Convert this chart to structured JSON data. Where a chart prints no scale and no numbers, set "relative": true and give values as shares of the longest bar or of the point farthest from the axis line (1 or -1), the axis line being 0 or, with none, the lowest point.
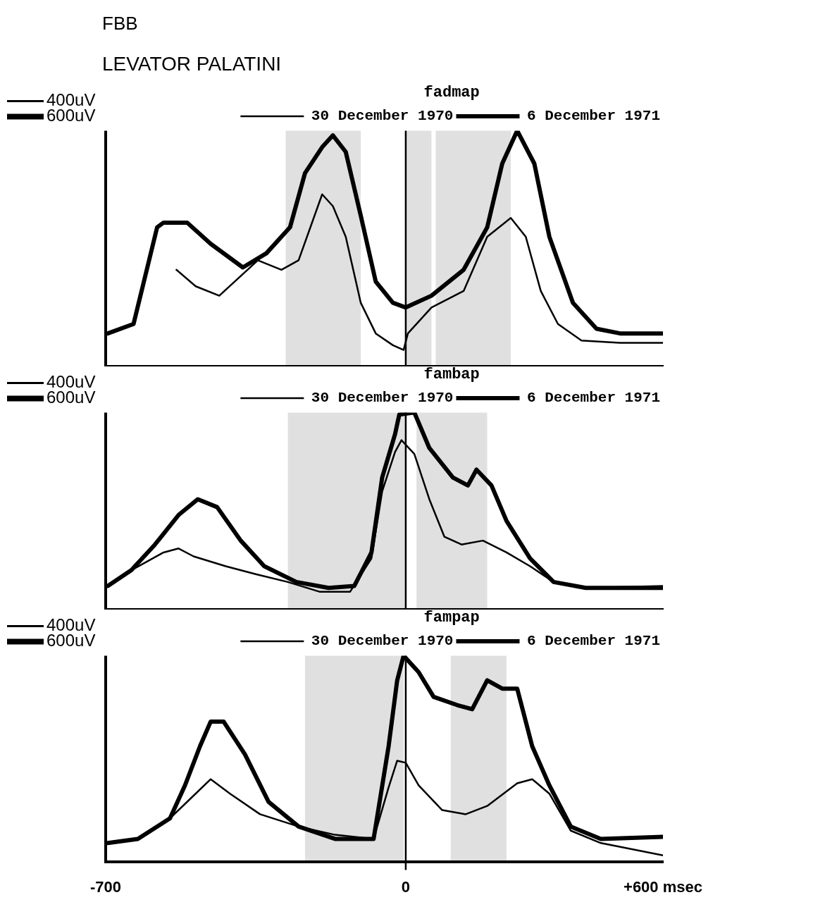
{
  "chart_data": [
    {
      "type": "line",
      "title": "LEVATOR PALATINI",
      "subtitle": "FBB",
      "legend_title": "fadmap",
      "legend": "top right",
      "relative": true,
      "xlim": [
        -700,
        600
      ],
      "tick_labels": false,
      "annotations": [
        "400uV",
        "600uV"
      ],
      "series": [
        {
          "name": "30 December 1970",
          "color": "#000000",
          "x": [
            -535,
            -490,
            -435,
            -345,
            -290,
            -250,
            -195,
            -170,
            -140,
            -105,
            -70,
            -30,
            -5,
            5,
            60,
            135,
            190,
            245,
            280,
            315,
            355,
            410,
            500,
            600
          ],
          "values": [
            0.41,
            0.34,
            0.3,
            0.45,
            0.41,
            0.45,
            0.73,
            0.68,
            0.55,
            0.27,
            0.14,
            0.09,
            0.07,
            0.14,
            0.25,
            0.32,
            0.55,
            0.63,
            0.55,
            0.32,
            0.18,
            0.11,
            0.1,
            0.1
          ]
        },
        {
          "name": "6 December 1971",
          "color": "#000000",
          "x": [
            -695,
            -635,
            -580,
            -565,
            -510,
            -455,
            -380,
            -325,
            -270,
            -235,
            -195,
            -170,
            -140,
            -105,
            -70,
            -30,
            0,
            60,
            135,
            190,
            225,
            260,
            300,
            335,
            390,
            445,
            500,
            600
          ],
          "values": [
            0.14,
            0.18,
            0.59,
            0.61,
            0.61,
            0.52,
            0.42,
            0.48,
            0.59,
            0.82,
            0.93,
            0.98,
            0.91,
            0.64,
            0.36,
            0.27,
            0.25,
            0.3,
            0.41,
            0.59,
            0.86,
            1.0,
            0.86,
            0.55,
            0.27,
            0.16,
            0.14,
            0.14
          ]
        }
      ],
      "ref_lines": [
        {
          "axis": "x",
          "value": 0,
          "color": "#000000"
        }
      ],
      "bands": [
        {
          "axis": "x",
          "from": -280,
          "to": -105,
          "color": "#000000"
        },
        {
          "axis": "x",
          "from": 0,
          "to": 60,
          "color": "#000000"
        },
        {
          "axis": "x",
          "from": 70,
          "to": 245,
          "color": "#000000"
        }
      ]
    },
    {
      "type": "line",
      "legend_title": "fambap",
      "legend": "top right",
      "relative": true,
      "xlim": [
        -700,
        600
      ],
      "tick_labels": false,
      "annotations": [
        "400uV",
        "600uV"
      ],
      "series": [
        {
          "name": "30 December 1970",
          "color": "#000000",
          "x": [
            -695,
            -640,
            -565,
            -530,
            -495,
            -420,
            -350,
            -275,
            -200,
            -130,
            -80,
            -55,
            -25,
            -10,
            20,
            55,
            90,
            130,
            180,
            235,
            290,
            345,
            420,
            600
          ],
          "values": [
            0.12,
            0.2,
            0.29,
            0.31,
            0.27,
            0.22,
            0.18,
            0.14,
            0.09,
            0.09,
            0.26,
            0.6,
            0.8,
            0.86,
            0.79,
            0.56,
            0.37,
            0.33,
            0.35,
            0.29,
            0.22,
            0.14,
            0.11,
            0.12
          ]
        },
        {
          "name": "6 December 1971",
          "color": "#000000",
          "x": [
            -695,
            -640,
            -585,
            -530,
            -485,
            -440,
            -385,
            -330,
            -255,
            -180,
            -120,
            -80,
            -55,
            -25,
            -15,
            20,
            55,
            110,
            145,
            165,
            200,
            235,
            290,
            345,
            420,
            600
          ],
          "values": [
            0.12,
            0.2,
            0.33,
            0.48,
            0.56,
            0.52,
            0.35,
            0.22,
            0.14,
            0.11,
            0.12,
            0.29,
            0.67,
            0.89,
            0.99,
            1.0,
            0.82,
            0.67,
            0.63,
            0.71,
            0.63,
            0.45,
            0.26,
            0.14,
            0.11,
            0.11
          ]
        }
      ],
      "ref_lines": [
        {
          "axis": "x",
          "value": 0,
          "color": "#000000"
        }
      ],
      "bands": [
        {
          "axis": "x",
          "from": -275,
          "to": -120,
          "color": "#000000"
        },
        {
          "axis": "x",
          "from": -120,
          "to": 0,
          "color": "#000000"
        },
        {
          "axis": "x",
          "from": 25,
          "to": 190,
          "color": "#000000"
        }
      ]
    },
    {
      "type": "line",
      "legend_title": "fampap",
      "legend": "top right",
      "relative": true,
      "xlim": [
        -700,
        600
      ],
      "xticks": [
        {
          "value": -700,
          "label": "-700"
        },
        {
          "value": 0,
          "label": "0"
        },
        {
          "value": 600,
          "label": "+600 msec"
        }
      ],
      "tick_labels": "x",
      "annotations": [
        "400uV",
        "600uV"
      ],
      "series": [
        {
          "name": "30 December 1970",
          "color": "#000000",
          "x": [
            -695,
            -625,
            -550,
            -500,
            -455,
            -410,
            -340,
            -250,
            -165,
            -75,
            -40,
            -20,
            0,
            30,
            85,
            140,
            190,
            260,
            295,
            335,
            385,
            455,
            600
          ],
          "values": [
            0.09,
            0.11,
            0.21,
            0.31,
            0.4,
            0.33,
            0.23,
            0.17,
            0.13,
            0.11,
            0.36,
            0.49,
            0.48,
            0.37,
            0.25,
            0.23,
            0.27,
            0.38,
            0.4,
            0.33,
            0.15,
            0.09,
            0.03
          ]
        },
        {
          "name": "6 December 1971",
          "color": "#000000",
          "x": [
            -695,
            -625,
            -550,
            -515,
            -480,
            -455,
            -425,
            -375,
            -320,
            -250,
            -165,
            -75,
            -40,
            -20,
            -5,
            30,
            65,
            120,
            155,
            190,
            225,
            260,
            295,
            335,
            385,
            455,
            600
          ],
          "values": [
            0.09,
            0.11,
            0.21,
            0.37,
            0.56,
            0.68,
            0.68,
            0.52,
            0.29,
            0.17,
            0.11,
            0.11,
            0.56,
            0.88,
            1.0,
            0.92,
            0.8,
            0.76,
            0.74,
            0.88,
            0.84,
            0.84,
            0.56,
            0.37,
            0.17,
            0.11,
            0.12
          ]
        }
      ],
      "ref_lines": [
        {
          "axis": "x",
          "value": 0,
          "color": "#000000"
        }
      ],
      "bands": [
        {
          "axis": "x",
          "from": -235,
          "to": -75,
          "color": "#000000"
        },
        {
          "axis": "x",
          "from": -75,
          "to": -5,
          "color": "#000000"
        },
        {
          "axis": "x",
          "from": 105,
          "to": 235,
          "color": "#000000"
        }
      ]
    }
  ]
}
